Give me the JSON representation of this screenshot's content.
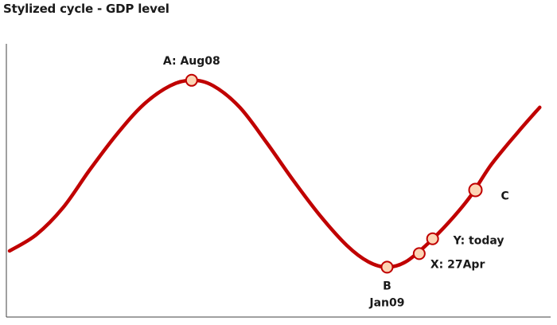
{
  "chart_data": {
    "type": "line",
    "title": "Stylized cycle - GDP level",
    "xlabel": "",
    "ylabel": "",
    "grid": false,
    "legend": "none",
    "line_color": "#c00000",
    "marker_fill": "#fcd5b5",
    "marker_stroke": "#c00000",
    "axis_color": "#404040",
    "x_domain": [
      0,
      100
    ],
    "y_domain": [
      0,
      100
    ],
    "series": [
      {
        "values": [
          [
            0,
            25
          ],
          [
            5,
            31
          ],
          [
            10,
            41
          ],
          [
            15,
            55
          ],
          [
            20,
            68
          ],
          [
            25,
            79
          ],
          [
            30,
            86
          ],
          [
            34,
            88
          ],
          [
            38,
            86
          ],
          [
            43,
            78
          ],
          [
            48,
            65
          ],
          [
            53,
            51
          ],
          [
            58,
            38
          ],
          [
            63,
            27
          ],
          [
            67,
            21
          ],
          [
            70.5,
            19
          ],
          [
            74,
            21
          ],
          [
            78,
            27.5
          ],
          [
            82,
            35.5
          ],
          [
            86,
            45
          ],
          [
            90,
            57
          ],
          [
            95,
            69
          ],
          [
            99,
            78
          ]
        ]
      }
    ],
    "annotations": [
      {
        "x": 34,
        "y": 88,
        "lines": [
          "A: Aug08"
        ],
        "anchor": "above"
      },
      {
        "x": 70.5,
        "y": 19,
        "lines": [
          "B",
          "Jan09"
        ],
        "anchor": "below"
      },
      {
        "x": 76.5,
        "y": 24,
        "lines": [
          "X: 27Apr"
        ],
        "anchor": "right-low"
      },
      {
        "x": 79,
        "y": 29.5,
        "lines": [
          "Y: today"
        ],
        "anchor": "right"
      },
      {
        "x": 87,
        "y": 47.5,
        "lines": [
          "C"
        ],
        "anchor": "far-right"
      }
    ]
  }
}
